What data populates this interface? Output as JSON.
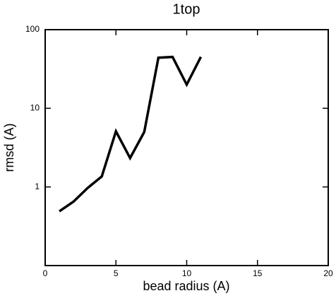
{
  "chart_data": {
    "type": "line",
    "title": "1top",
    "x_label": "bead radius (A)",
    "y_label": "rmsd (A)",
    "x": [
      1,
      2,
      3,
      4,
      5,
      6,
      7,
      8,
      9,
      10,
      11
    ],
    "series": [
      {
        "name": "1top",
        "color": "#000000",
        "values": [
          0.49,
          0.65,
          0.97,
          1.36,
          5.1,
          2.33,
          5.0,
          44,
          45,
          20,
          45
        ]
      }
    ],
    "xlim": [
      0,
      20
    ],
    "xticks": [
      0,
      5,
      10,
      15,
      20
    ],
    "ylim": [
      0.1,
      100
    ],
    "yticks": [
      1,
      10,
      100
    ],
    "y_log": true,
    "grid": false
  }
}
